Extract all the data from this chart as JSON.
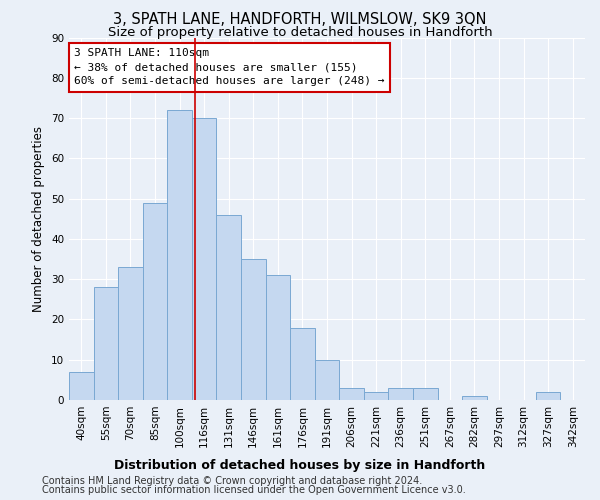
{
  "title": "3, SPATH LANE, HANDFORTH, WILMSLOW, SK9 3QN",
  "subtitle": "Size of property relative to detached houses in Handforth",
  "xlabel": "Distribution of detached houses by size in Handforth",
  "ylabel": "Number of detached properties",
  "categories": [
    "40sqm",
    "55sqm",
    "70sqm",
    "85sqm",
    "100sqm",
    "116sqm",
    "131sqm",
    "146sqm",
    "161sqm",
    "176sqm",
    "191sqm",
    "206sqm",
    "221sqm",
    "236sqm",
    "251sqm",
    "267sqm",
    "282sqm",
    "297sqm",
    "312sqm",
    "327sqm",
    "342sqm"
  ],
  "values": [
    7,
    28,
    33,
    49,
    72,
    70,
    46,
    35,
    31,
    18,
    10,
    3,
    2,
    3,
    3,
    0,
    1,
    0,
    0,
    2,
    0
  ],
  "bar_color": "#c5d8f0",
  "bar_edge_color": "#7aa8d2",
  "vline_color": "#cc0000",
  "annotation_line1": "3 SPATH LANE: 110sqm",
  "annotation_line2": "← 38% of detached houses are smaller (155)",
  "annotation_line3": "60% of semi-detached houses are larger (248) →",
  "annotation_box_color": "#ffffff",
  "annotation_box_edge": "#cc0000",
  "ylim": [
    0,
    90
  ],
  "yticks": [
    0,
    10,
    20,
    30,
    40,
    50,
    60,
    70,
    80,
    90
  ],
  "footer1": "Contains HM Land Registry data © Crown copyright and database right 2024.",
  "footer2": "Contains public sector information licensed under the Open Government Licence v3.0.",
  "background_color": "#eaf0f8",
  "grid_color": "#ffffff",
  "title_fontsize": 10.5,
  "subtitle_fontsize": 9.5,
  "ylabel_fontsize": 8.5,
  "xlabel_fontsize": 9,
  "tick_fontsize": 7.5,
  "annotation_fontsize": 8,
  "footer_fontsize": 7
}
